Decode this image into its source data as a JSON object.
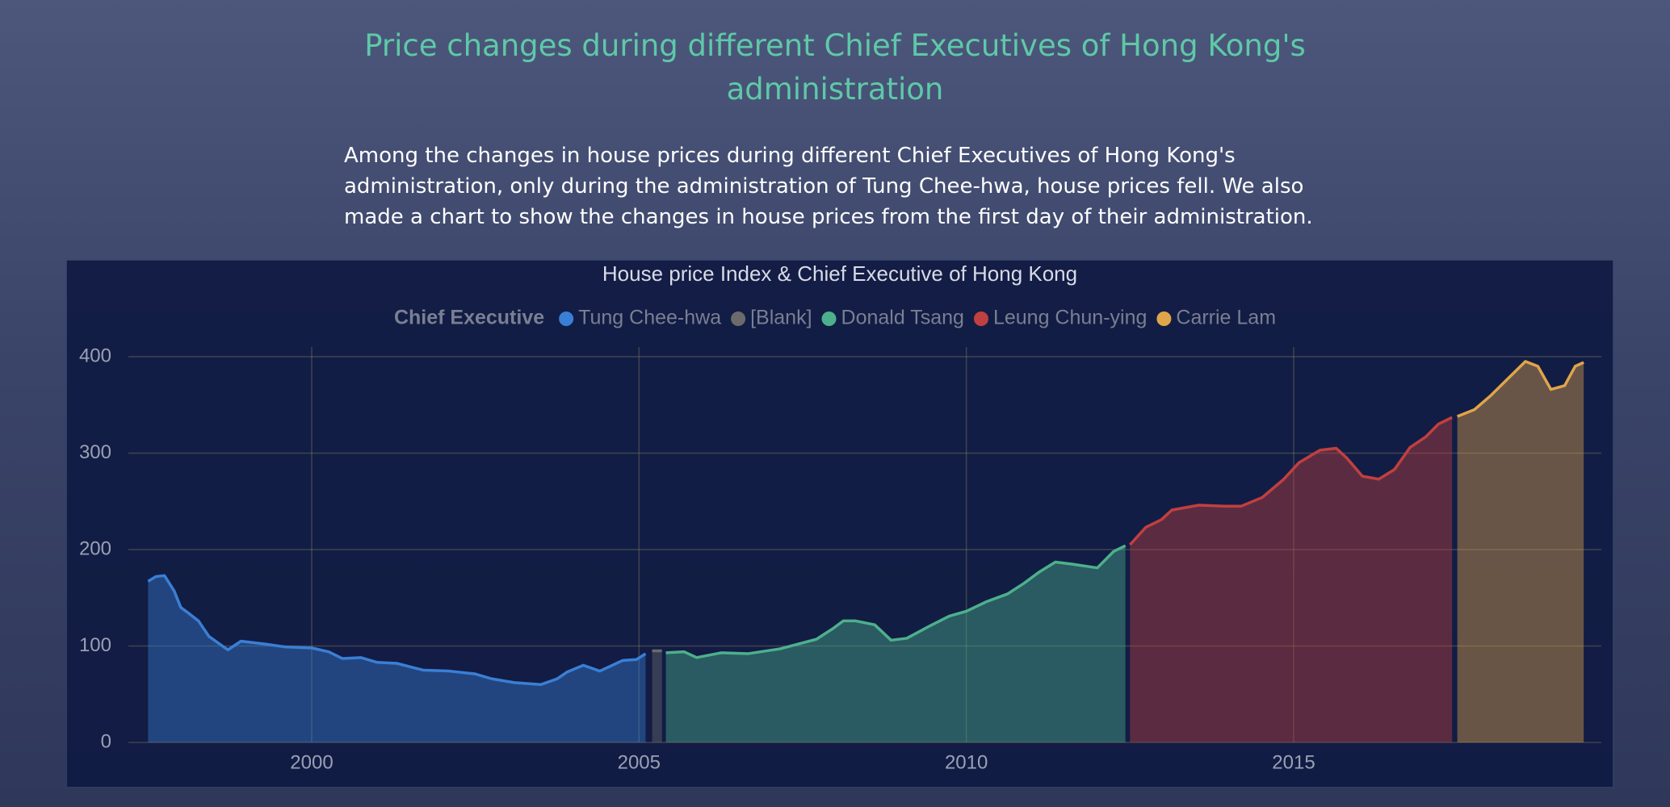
{
  "header": {
    "title": "Price changes during different Chief Executives of Hong Kong's administration",
    "paragraph": "Among the changes in house prices during different Chief Executives of Hong Kong's administration, only during the administration of Tung Chee-hwa, house prices fell. We also made a chart to show the changes in house prices from the first day of their administration."
  },
  "chart_data": {
    "type": "area",
    "title": "House price Index & Chief Executive of Hong Kong",
    "legend_title": "Chief Executive",
    "xlim": [
      1997.2,
      2019.7
    ],
    "xticks": [
      2000,
      2005,
      2010,
      2015
    ],
    "ylim": [
      0,
      410
    ],
    "yticks": [
      0,
      100,
      200,
      300,
      400
    ],
    "grid": true,
    "series": [
      {
        "name": "Tung Chee-hwa",
        "color": "#3a7fd5",
        "x": [
          1997.5,
          1997.62,
          1997.75,
          1997.9,
          1998.0,
          1998.1,
          1998.27,
          1998.43,
          1998.72,
          1998.92,
          1999.29,
          1999.6,
          2000.0,
          2000.26,
          2000.47,
          2000.75,
          2001.0,
          2001.3,
          2001.7,
          2002.1,
          2002.5,
          2002.75,
          2003.1,
          2003.5,
          2003.75,
          2003.9,
          2004.15,
          2004.4,
          2004.75,
          2004.96,
          2005.1
        ],
        "values": [
          167,
          172,
          173,
          157,
          140,
          135,
          126,
          110,
          96,
          105,
          102,
          99,
          98,
          94,
          87,
          88,
          83,
          82,
          75,
          74,
          71,
          66,
          62,
          60,
          66,
          73,
          80,
          74,
          85,
          86,
          92
        ]
      },
      {
        "name": "[Blank]",
        "color": "#6b6b6b",
        "x": [
          2005.2,
          2005.35
        ],
        "values": [
          95,
          95
        ]
      },
      {
        "name": "Donald Tsang",
        "color": "#4db08c",
        "x": [
          2005.41,
          2005.69,
          2005.88,
          2006.26,
          2006.66,
          2007.15,
          2007.71,
          2007.96,
          2008.12,
          2008.31,
          2008.6,
          2008.85,
          2009.09,
          2009.42,
          2009.74,
          2010.0,
          2010.31,
          2010.63,
          2010.88,
          2011.12,
          2011.36,
          2011.6,
          2012.0,
          2012.25,
          2012.43
        ],
        "values": [
          93,
          94,
          88,
          93,
          92,
          97,
          107,
          118,
          126,
          126,
          122,
          106,
          108,
          120,
          131,
          136,
          146,
          154,
          165,
          177,
          187,
          185,
          181,
          198,
          204
        ]
      },
      {
        "name": "Leung Chun-ying",
        "color": "#c0403f",
        "x": [
          2012.5,
          2012.74,
          2012.98,
          2013.14,
          2013.55,
          2013.95,
          2014.2,
          2014.52,
          2014.85,
          2015.08,
          2015.4,
          2015.65,
          2015.81,
          2016.05,
          2016.3,
          2016.54,
          2016.78,
          2017.02,
          2017.21,
          2017.42
        ],
        "values": [
          205,
          223,
          231,
          241,
          246,
          245,
          245,
          254,
          273,
          290,
          303,
          305,
          295,
          276,
          273,
          283,
          306,
          317,
          330,
          337
        ]
      },
      {
        "name": "Carrie Lam",
        "color": "#e0a54a",
        "x": [
          2017.5,
          2017.76,
          2018.0,
          2018.33,
          2018.54,
          2018.73,
          2018.93,
          2019.14,
          2019.3,
          2019.43
        ],
        "values": [
          338,
          345,
          359,
          381,
          395,
          390,
          366,
          370,
          390,
          394
        ]
      }
    ]
  }
}
